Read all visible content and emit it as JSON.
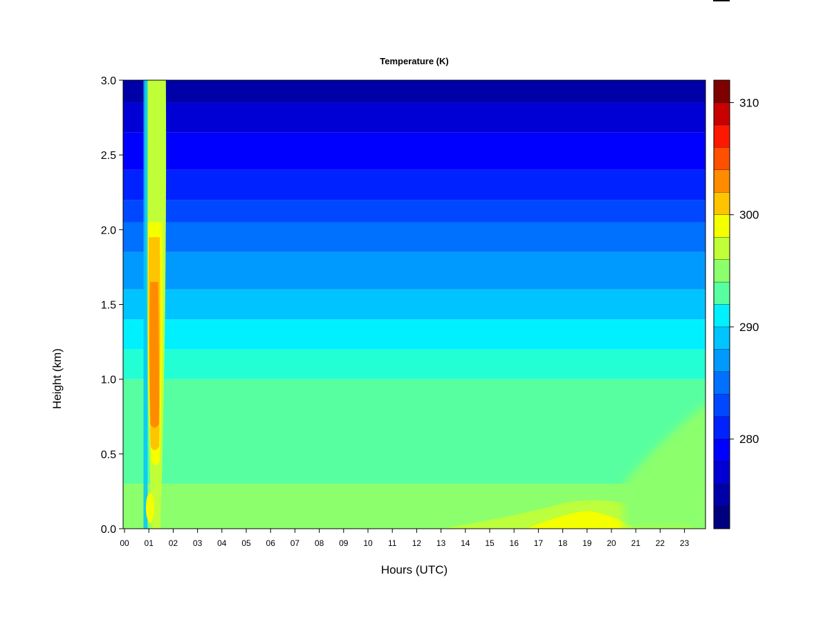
{
  "chart_data": {
    "type": "heatmap",
    "title": "Temperature (K)",
    "xlabel": "Hours (UTC)",
    "ylabel": "Height (km)",
    "x_ticks": [
      "00",
      "01",
      "02",
      "03",
      "04",
      "05",
      "06",
      "07",
      "08",
      "09",
      "10",
      "11",
      "12",
      "13",
      "14",
      "15",
      "16",
      "17",
      "18",
      "19",
      "20",
      "21",
      "22",
      "23"
    ],
    "xlim": [
      0,
      24
    ],
    "y_ticks": [
      "0.0",
      "0.5",
      "1.0",
      "1.5",
      "2.0",
      "2.5",
      "3.0"
    ],
    "ylim": [
      0.0,
      3.0
    ],
    "colorbar": {
      "range": [
        272,
        312
      ],
      "tick_labels": [
        "280",
        "290",
        "300",
        "310"
      ],
      "tick_values": [
        280,
        290,
        300,
        310
      ],
      "levels": 20,
      "colors": [
        "#00007f",
        "#0000a8",
        "#0000d4",
        "#0000ff",
        "#0022ff",
        "#0048ff",
        "#0070ff",
        "#009aff",
        "#00c4ff",
        "#00f0ff",
        "#22ffd4",
        "#58ffa0",
        "#8cff6c",
        "#c0ff38",
        "#f4ff00",
        "#ffc400",
        "#ff8c00",
        "#ff5000",
        "#ff1800",
        "#c80000",
        "#7f0000"
      ]
    },
    "grid": false,
    "legend_position": "right"
  }
}
